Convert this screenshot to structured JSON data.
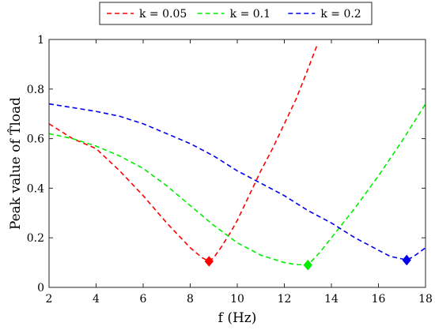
{
  "chart_data": {
    "type": "line",
    "title": "",
    "xlabel": "f (Hz)",
    "ylabel": "Peak value of T̂load",
    "xlim": [
      2,
      18
    ],
    "ylim": [
      0,
      1
    ],
    "xticks": [
      2,
      4,
      6,
      8,
      10,
      12,
      14,
      16,
      18
    ],
    "yticks": [
      0,
      0.2,
      0.4,
      0.6,
      0.8,
      1
    ],
    "xtick_labels": [
      "2",
      "4",
      "6",
      "8",
      "10",
      "12",
      "14",
      "16",
      "18"
    ],
    "ytick_labels": [
      "0",
      "0.2",
      "0.4",
      "0.6",
      "0.8",
      "1"
    ],
    "grid": false,
    "legend_position": "top (outside, above axes)",
    "line_style": "dashed",
    "series": [
      {
        "name": "k = 0.05",
        "color": "#ff0000",
        "x": [
          2,
          3,
          4,
          5,
          6,
          7,
          8,
          8.5,
          8.8,
          9,
          9.3,
          9.7,
          10,
          10.5,
          11,
          11.5,
          12,
          12.5,
          13,
          13.4
        ],
        "y": [
          0.66,
          0.6,
          0.56,
          0.47,
          0.37,
          0.26,
          0.16,
          0.12,
          0.105,
          0.12,
          0.16,
          0.22,
          0.27,
          0.37,
          0.47,
          0.56,
          0.66,
          0.76,
          0.88,
          0.98
        ],
        "marker": {
          "x": 8.8,
          "y": 0.105
        }
      },
      {
        "name": "k = 0.1",
        "color": "#00ee00",
        "x": [
          2,
          3,
          4,
          5,
          6,
          7,
          8,
          9,
          10,
          11,
          12,
          12.5,
          13,
          13.5,
          14,
          15,
          16,
          17,
          18
        ],
        "y": [
          0.62,
          0.6,
          0.57,
          0.53,
          0.48,
          0.41,
          0.33,
          0.25,
          0.18,
          0.13,
          0.1,
          0.092,
          0.09,
          0.14,
          0.2,
          0.32,
          0.45,
          0.59,
          0.74
        ],
        "marker": {
          "x": 13,
          "y": 0.09
        }
      },
      {
        "name": "k = 0.2",
        "color": "#0000ee",
        "x": [
          2,
          3,
          4,
          5,
          6,
          7,
          8,
          9,
          10,
          11,
          12,
          13,
          14,
          15,
          16,
          16.5,
          17,
          17.2,
          17.5,
          18
        ],
        "y": [
          0.74,
          0.725,
          0.71,
          0.69,
          0.66,
          0.62,
          0.58,
          0.53,
          0.47,
          0.42,
          0.37,
          0.31,
          0.26,
          0.2,
          0.15,
          0.125,
          0.115,
          0.11,
          0.125,
          0.16
        ],
        "marker": {
          "x": 17.2,
          "y": 0.11
        }
      }
    ]
  }
}
